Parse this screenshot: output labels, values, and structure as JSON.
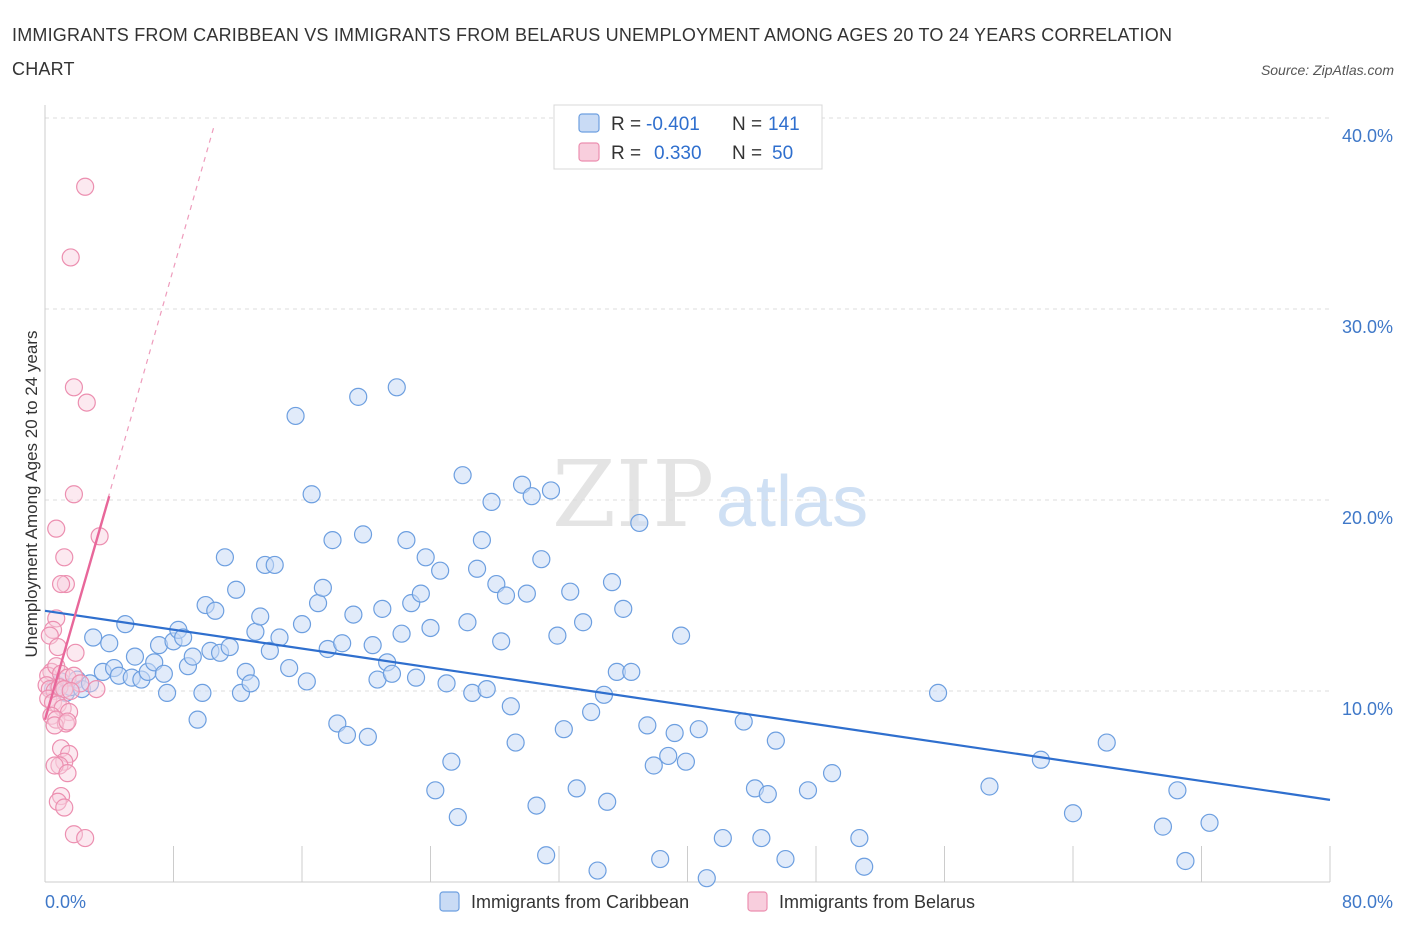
{
  "title": "IMMIGRANTS FROM CARIBBEAN VS IMMIGRANTS FROM BELARUS UNEMPLOYMENT AMONG AGES 20 TO 24 YEARS CORRELATION CHART",
  "source": "Source: ZipAtlas.com",
  "watermark": {
    "zip": "ZIP",
    "atlas": "atlas"
  },
  "colors": {
    "caribbean_fill": "#c9dbf5",
    "caribbean_stroke": "#6d9fe0",
    "caribbean_line": "#2f6fce",
    "belarus_fill": "#f8cedd",
    "belarus_stroke": "#ec8fb0",
    "belarus_line": "#e8679a",
    "grid": "#dcdcdc",
    "tick_label": "#3f78c8"
  },
  "legend": {
    "rows": [
      {
        "r_label": "R =",
        "r_value": "-0.401",
        "n_label": "N =",
        "n_value": "141"
      },
      {
        "r_label": "R =",
        "r_value": "0.330",
        "n_label": "N =",
        "n_value": "50"
      }
    ]
  },
  "chart_data": {
    "type": "scatter",
    "title": "IMMIGRANTS FROM CARIBBEAN VS IMMIGRANTS FROM BELARUS UNEMPLOYMENT AMONG AGES 20 TO 24 YEARS CORRELATION CHART",
    "xlabel": "",
    "ylabel": "Unemployment Among Ages 20 to 24 years",
    "xlim": [
      0,
      80
    ],
    "ylim": [
      0,
      40
    ],
    "y_ticks": [
      10,
      20,
      30,
      40
    ],
    "y_tick_labels": [
      "10.0%",
      "20.0%",
      "30.0%",
      "40.0%"
    ],
    "x_tick_labels": [
      "0.0%",
      "80.0%"
    ],
    "grid": "horizontal dashed",
    "legend_position": "top-center",
    "series": [
      {
        "name": "Immigrants from Caribbean",
        "r": -0.401,
        "n": 141,
        "trend": {
          "x": [
            0,
            80
          ],
          "y": [
            14.2,
            4.3
          ]
        },
        "points": [
          [
            0.5,
            10.1
          ],
          [
            0.8,
            10.3
          ],
          [
            1.0,
            10.5
          ],
          [
            1.3,
            9.9
          ],
          [
            1.6,
            10.2
          ],
          [
            2.0,
            10.6
          ],
          [
            2.3,
            10.1
          ],
          [
            2.8,
            10.4
          ],
          [
            3.0,
            12.8
          ],
          [
            3.6,
            11.0
          ],
          [
            4.0,
            12.5
          ],
          [
            4.3,
            11.2
          ],
          [
            4.6,
            10.8
          ],
          [
            5.0,
            13.5
          ],
          [
            5.4,
            10.7
          ],
          [
            5.6,
            11.8
          ],
          [
            6.0,
            10.6
          ],
          [
            6.4,
            11.0
          ],
          [
            6.8,
            11.5
          ],
          [
            7.1,
            12.4
          ],
          [
            7.4,
            10.9
          ],
          [
            7.6,
            9.9
          ],
          [
            8.0,
            12.6
          ],
          [
            8.3,
            13.2
          ],
          [
            8.6,
            12.8
          ],
          [
            8.9,
            11.3
          ],
          [
            9.2,
            11.8
          ],
          [
            9.5,
            8.5
          ],
          [
            9.8,
            9.9
          ],
          [
            10.0,
            14.5
          ],
          [
            10.3,
            12.1
          ],
          [
            10.6,
            14.2
          ],
          [
            10.9,
            12.0
          ],
          [
            11.2,
            17.0
          ],
          [
            11.5,
            12.3
          ],
          [
            11.9,
            15.3
          ],
          [
            12.2,
            9.9
          ],
          [
            12.5,
            11.0
          ],
          [
            12.8,
            10.4
          ],
          [
            13.1,
            13.1
          ],
          [
            13.4,
            13.9
          ],
          [
            13.7,
            16.6
          ],
          [
            14.0,
            12.1
          ],
          [
            14.3,
            16.6
          ],
          [
            14.6,
            12.8
          ],
          [
            15.2,
            11.2
          ],
          [
            15.6,
            24.4
          ],
          [
            16.0,
            13.5
          ],
          [
            16.3,
            10.5
          ],
          [
            16.6,
            20.3
          ],
          [
            17.0,
            14.6
          ],
          [
            17.3,
            15.4
          ],
          [
            17.6,
            12.2
          ],
          [
            17.9,
            17.9
          ],
          [
            18.2,
            8.3
          ],
          [
            18.5,
            12.5
          ],
          [
            18.8,
            7.7
          ],
          [
            19.2,
            14.0
          ],
          [
            19.5,
            25.4
          ],
          [
            19.8,
            18.2
          ],
          [
            20.1,
            7.6
          ],
          [
            20.4,
            12.4
          ],
          [
            20.7,
            10.6
          ],
          [
            21.0,
            14.3
          ],
          [
            21.3,
            11.5
          ],
          [
            21.6,
            10.9
          ],
          [
            21.9,
            25.9
          ],
          [
            22.2,
            13.0
          ],
          [
            22.5,
            17.9
          ],
          [
            22.8,
            14.6
          ],
          [
            23.1,
            10.7
          ],
          [
            23.4,
            15.1
          ],
          [
            23.7,
            17.0
          ],
          [
            24.0,
            13.3
          ],
          [
            24.3,
            4.8
          ],
          [
            24.6,
            16.3
          ],
          [
            25.0,
            10.4
          ],
          [
            25.3,
            6.3
          ],
          [
            25.7,
            3.4
          ],
          [
            26.0,
            21.3
          ],
          [
            26.3,
            13.6
          ],
          [
            26.6,
            9.9
          ],
          [
            26.9,
            16.4
          ],
          [
            27.2,
            17.9
          ],
          [
            27.5,
            10.1
          ],
          [
            27.8,
            19.9
          ],
          [
            28.1,
            15.6
          ],
          [
            28.4,
            12.6
          ],
          [
            28.7,
            15.0
          ],
          [
            29.0,
            9.2
          ],
          [
            29.3,
            7.3
          ],
          [
            29.7,
            20.8
          ],
          [
            30.0,
            15.1
          ],
          [
            30.3,
            20.2
          ],
          [
            30.6,
            4.0
          ],
          [
            30.9,
            16.9
          ],
          [
            31.2,
            1.4
          ],
          [
            31.5,
            20.5
          ],
          [
            31.9,
            12.9
          ],
          [
            32.3,
            8.0
          ],
          [
            32.7,
            15.2
          ],
          [
            33.1,
            4.9
          ],
          [
            33.5,
            13.6
          ],
          [
            34.0,
            8.9
          ],
          [
            34.4,
            0.6
          ],
          [
            34.8,
            9.8
          ],
          [
            35.0,
            4.2
          ],
          [
            35.3,
            15.7
          ],
          [
            35.6,
            11.0
          ],
          [
            36.0,
            14.3
          ],
          [
            36.5,
            11.0
          ],
          [
            37.0,
            18.8
          ],
          [
            37.5,
            8.2
          ],
          [
            37.9,
            6.1
          ],
          [
            38.3,
            1.2
          ],
          [
            38.8,
            6.6
          ],
          [
            39.2,
            7.8
          ],
          [
            39.6,
            12.9
          ],
          [
            39.9,
            6.3
          ],
          [
            40.7,
            8.0
          ],
          [
            41.2,
            0.2
          ],
          [
            42.2,
            2.3
          ],
          [
            43.5,
            8.4
          ],
          [
            44.2,
            4.9
          ],
          [
            44.6,
            2.3
          ],
          [
            45.0,
            4.6
          ],
          [
            45.5,
            7.4
          ],
          [
            46.1,
            1.2
          ],
          [
            47.5,
            4.8
          ],
          [
            49.0,
            5.7
          ],
          [
            50.7,
            2.3
          ],
          [
            51.0,
            0.8
          ],
          [
            55.6,
            9.9
          ],
          [
            58.8,
            5.0
          ],
          [
            62.0,
            6.4
          ],
          [
            66.1,
            7.3
          ],
          [
            70.5,
            4.8
          ],
          [
            71.0,
            1.1
          ],
          [
            72.5,
            3.1
          ],
          [
            69.6,
            2.9
          ],
          [
            64.0,
            3.6
          ]
        ]
      },
      {
        "name": "Immigrants from Belarus",
        "r": 0.33,
        "n": 50,
        "trend": {
          "x": [
            0,
            4
          ],
          "y": [
            8.5,
            20.2
          ]
        },
        "trend_dashed_extension": {
          "x": [
            0,
            10.5
          ],
          "y": [
            8.5,
            39.5
          ]
        },
        "points": [
          [
            2.5,
            36.4
          ],
          [
            1.6,
            32.7
          ],
          [
            1.8,
            25.9
          ],
          [
            2.6,
            25.1
          ],
          [
            1.8,
            20.3
          ],
          [
            3.4,
            18.1
          ],
          [
            0.7,
            18.5
          ],
          [
            1.2,
            17.0
          ],
          [
            1.3,
            15.6
          ],
          [
            1.0,
            15.6
          ],
          [
            0.7,
            13.8
          ],
          [
            0.5,
            13.2
          ],
          [
            0.3,
            12.9
          ],
          [
            1.9,
            12.0
          ],
          [
            0.8,
            12.3
          ],
          [
            0.4,
            11.0
          ],
          [
            0.2,
            10.8
          ],
          [
            0.7,
            11.3
          ],
          [
            1.0,
            10.9
          ],
          [
            1.4,
            10.7
          ],
          [
            1.8,
            10.8
          ],
          [
            2.2,
            10.4
          ],
          [
            0.1,
            10.3
          ],
          [
            0.3,
            10.1
          ],
          [
            0.6,
            10.0
          ],
          [
            0.9,
            10.2
          ],
          [
            1.2,
            10.1
          ],
          [
            1.6,
            10.0
          ],
          [
            0.2,
            9.6
          ],
          [
            0.5,
            9.4
          ],
          [
            0.8,
            9.3
          ],
          [
            1.1,
            9.1
          ],
          [
            1.5,
            8.9
          ],
          [
            3.2,
            10.1
          ],
          [
            0.4,
            8.7
          ],
          [
            0.7,
            8.5
          ],
          [
            1.3,
            8.3
          ],
          [
            0.6,
            8.2
          ],
          [
            1.0,
            7.0
          ],
          [
            1.5,
            6.7
          ],
          [
            1.2,
            6.3
          ],
          [
            0.9,
            6.1
          ],
          [
            0.6,
            6.1
          ],
          [
            1.4,
            5.7
          ],
          [
            1.0,
            4.5
          ],
          [
            0.8,
            4.2
          ],
          [
            1.2,
            3.9
          ],
          [
            1.8,
            2.5
          ],
          [
            2.5,
            2.3
          ],
          [
            1.4,
            8.4
          ]
        ]
      }
    ]
  },
  "bottom_legend": {
    "items": [
      "Immigrants from Caribbean",
      "Immigrants from Belarus"
    ]
  }
}
